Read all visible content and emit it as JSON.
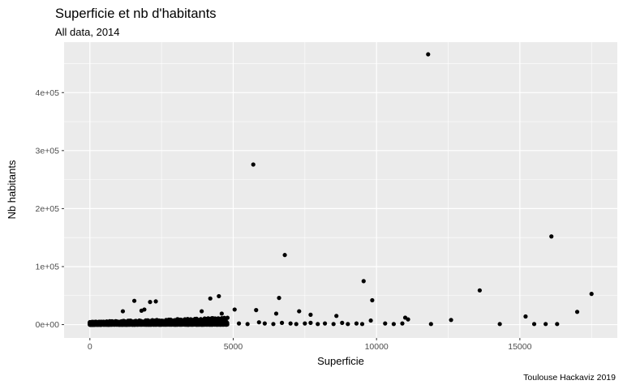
{
  "chart_data": {
    "type": "scatter",
    "title": "Superficie et nb d'habitants",
    "subtitle": "All data, 2014",
    "xlabel": "Superficie",
    "ylabel": "Nb habitants",
    "caption": "Toulouse Hackaviz 2019",
    "xlim": [
      -900,
      18400
    ],
    "ylim": [
      -23000,
      487000
    ],
    "x_ticks": [
      {
        "value": 0,
        "label": "0"
      },
      {
        "value": 5000,
        "label": "5000"
      },
      {
        "value": 10000,
        "label": "10000"
      },
      {
        "value": 15000,
        "label": "15000"
      }
    ],
    "y_ticks": [
      {
        "value": 0,
        "label": "0e+00"
      },
      {
        "value": 100000,
        "label": "1e+05"
      },
      {
        "value": 200000,
        "label": "2e+05"
      },
      {
        "value": 300000,
        "label": "3e+05"
      },
      {
        "value": 400000,
        "label": "4e+05"
      }
    ],
    "grid": true,
    "background": "#ebebeb",
    "point_color": "#000000",
    "points": [
      [
        11800,
        466000
      ],
      [
        5700,
        276000
      ],
      [
        16100,
        152000
      ],
      [
        6800,
        120000
      ],
      [
        9550,
        75000
      ],
      [
        13600,
        59000
      ],
      [
        17500,
        53000
      ],
      [
        9850,
        42000
      ],
      [
        4500,
        49000
      ],
      [
        4200,
        45000
      ],
      [
        6600,
        46000
      ],
      [
        1550,
        41000
      ],
      [
        2100,
        39000
      ],
      [
        2300,
        40000
      ],
      [
        5050,
        26000
      ],
      [
        5800,
        25000
      ],
      [
        7300,
        23000
      ],
      [
        17000,
        22000
      ],
      [
        1150,
        23000
      ],
      [
        1800,
        24000
      ],
      [
        1900,
        26000
      ],
      [
        3900,
        23000
      ],
      [
        4600,
        19000
      ],
      [
        6500,
        19000
      ],
      [
        7700,
        17000
      ],
      [
        8600,
        15000
      ],
      [
        15200,
        14000
      ],
      [
        11000,
        12000
      ],
      [
        12600,
        8000
      ],
      [
        11100,
        9000
      ],
      [
        9800,
        7000
      ],
      [
        14300,
        1000
      ],
      [
        15500,
        1000
      ],
      [
        15900,
        1000
      ],
      [
        16300,
        1000
      ],
      [
        11900,
        1000
      ],
      [
        10900,
        2000
      ],
      [
        10600,
        1000
      ],
      [
        10300,
        2000
      ],
      [
        9500,
        1000
      ],
      [
        9300,
        2000
      ],
      [
        9000,
        1000
      ],
      [
        8800,
        3000
      ],
      [
        8500,
        1000
      ],
      [
        8200,
        2000
      ],
      [
        7950,
        1000
      ],
      [
        7700,
        3000
      ],
      [
        7500,
        2000
      ],
      [
        7200,
        1000
      ],
      [
        7000,
        2000
      ],
      [
        6700,
        3000
      ],
      [
        6400,
        1000
      ],
      [
        6100,
        2000
      ],
      [
        5900,
        4000
      ],
      [
        5500,
        1000
      ],
      [
        5200,
        2000
      ]
    ],
    "dense_cluster": {
      "x_range": [
        0,
        4800
      ],
      "y_range": [
        0,
        12000
      ],
      "count": 1800
    }
  }
}
